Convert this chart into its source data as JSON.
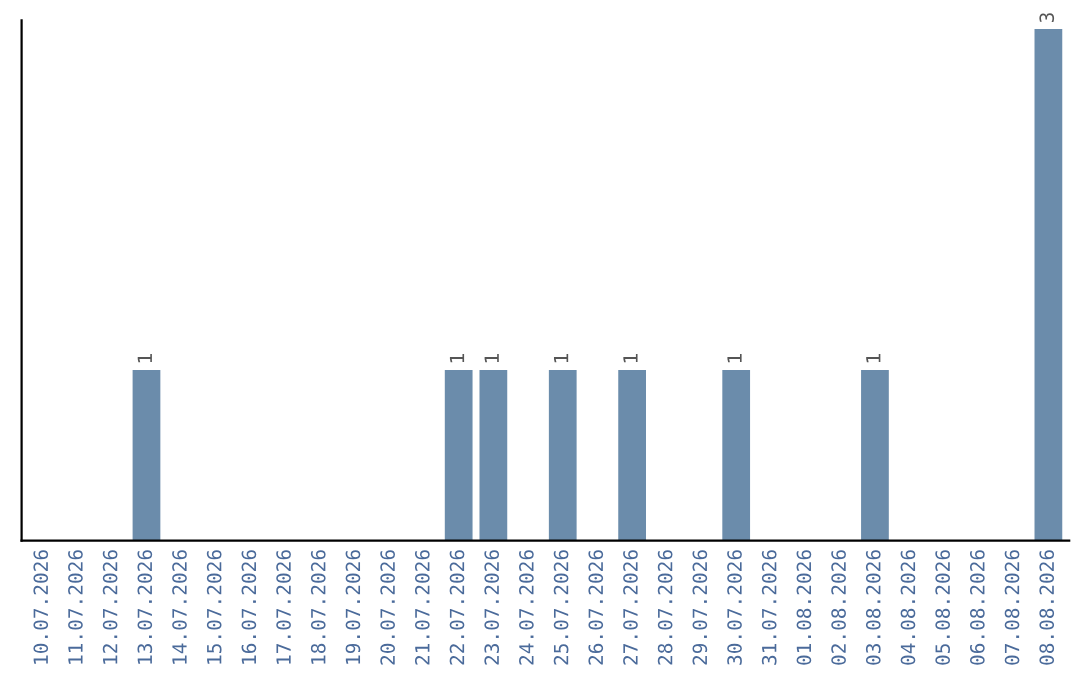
{
  "chart_data": {
    "type": "bar",
    "categories": [
      "10.07.2026",
      "11.07.2026",
      "12.07.2026",
      "13.07.2026",
      "14.07.2026",
      "15.07.2026",
      "16.07.2026",
      "17.07.2026",
      "18.07.2026",
      "19.07.2026",
      "20.07.2026",
      "21.07.2026",
      "22.07.2026",
      "23.07.2026",
      "24.07.2026",
      "25.07.2026",
      "26.07.2026",
      "27.07.2026",
      "28.07.2026",
      "29.07.2026",
      "30.07.2026",
      "31.07.2026",
      "01.08.2026",
      "02.08.2026",
      "03.08.2026",
      "04.08.2026",
      "05.08.2026",
      "06.08.2026",
      "07.08.2026",
      "08.08.2026"
    ],
    "values": [
      0,
      0,
      0,
      1,
      0,
      0,
      0,
      0,
      0,
      0,
      0,
      0,
      1,
      1,
      0,
      1,
      0,
      1,
      0,
      0,
      1,
      0,
      0,
      0,
      1,
      0,
      0,
      0,
      0,
      3
    ],
    "color": "#6b8cab",
    "ylim": [
      0,
      3.05
    ],
    "value_labels": [
      null,
      null,
      null,
      "1",
      null,
      null,
      null,
      null,
      null,
      null,
      null,
      null,
      "1",
      "1",
      null,
      "1",
      null,
      "1",
      null,
      null,
      "1",
      null,
      null,
      null,
      "1",
      null,
      null,
      null,
      null,
      "3"
    ],
    "tick_labels": "x",
    "grid": false,
    "legend": false
  }
}
